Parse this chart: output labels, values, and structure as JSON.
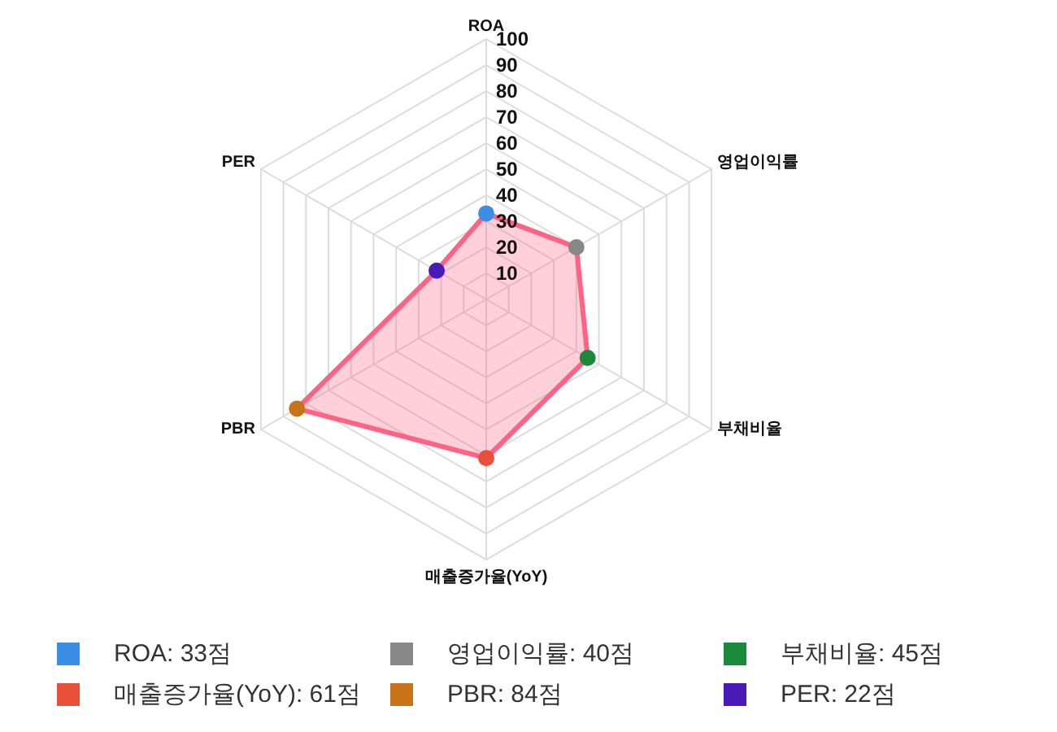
{
  "chart_data": {
    "type": "radar",
    "categories": [
      "ROA",
      "영업이익률",
      "부채비율",
      "매출증가율(YoY)",
      "PBR",
      "PER"
    ],
    "series": [
      {
        "color": "#ff6384",
        "values": [
          33,
          40,
          45,
          61,
          84,
          22
        ],
        "colors": [
          "#3a8ee6",
          "#888888",
          "#1a8a3a",
          "#e8503a",
          "#c8731a",
          "#4a1ab8"
        ]
      }
    ],
    "annotations": [
      "ROA: 33점",
      "영업이익률: 40점",
      "부채비율: 45점",
      "매출증가율(YoY): 61점",
      "PBR: 84점",
      "PER: 22점"
    ],
    "ylim": [
      0,
      100
    ],
    "yticks": [
      10,
      20,
      30,
      40,
      50,
      60,
      70,
      80,
      90,
      100
    ],
    "grid": true,
    "marker": "circle"
  }
}
